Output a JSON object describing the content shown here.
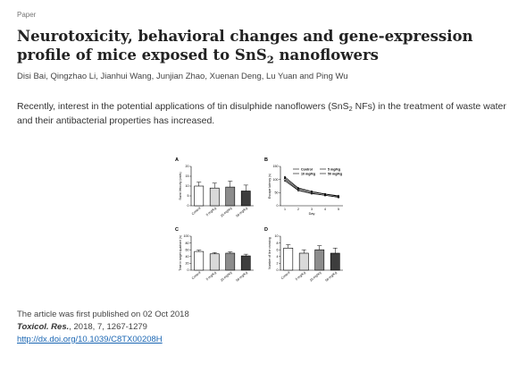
{
  "kind": "Paper",
  "title": {
    "before_sub": "Neurotoxicity, behavioral changes and gene-expression profile of mice exposed to SnS",
    "sub": "2",
    "after_sub": " nanoflowers"
  },
  "authors": "Disi Bai, Qingzhao Li, Jianhui Wang, Junjian Zhao, Xuenan Deng, Lu Yuan and Ping Wu",
  "abstract": {
    "before_sub": "Recently, interest in the potential applications of tin disulphide nanoflowers (SnS",
    "sub": "2",
    "after_sub": " NFs) in the treatment of waste water and their antibacterial properties has increased."
  },
  "figure": {
    "categories": [
      "Control",
      "5 mg/Kg",
      "10 mg/Kg",
      "50 mg/Kg"
    ],
    "bar_colors": [
      "#ffffff",
      "#d9d9d9",
      "#8c8c8c",
      "#3d3d3d"
    ],
    "panels": [
      {
        "label": "A",
        "chart_data": {
          "type": "bar",
          "ylabel": "Swim Velocity (cm/s)",
          "ylim": [
            0,
            20
          ],
          "yticks": [
            "0",
            "5",
            "10",
            "15",
            "20"
          ],
          "categories": [
            "Control",
            "5 mg/Kg",
            "10 mg/Kg",
            "50 mg/Kg"
          ],
          "values": [
            10,
            9,
            9.5,
            7.5
          ],
          "errors": [
            2,
            2.5,
            3,
            3
          ]
        }
      },
      {
        "label": "B",
        "chart_data": {
          "type": "line",
          "xlabel": "Day",
          "ylabel": "Escape latency (s)",
          "ylim": [
            0,
            150
          ],
          "yticks": [
            "0",
            "50",
            "100",
            "150"
          ],
          "x": [
            1,
            2,
            3,
            4,
            5
          ],
          "series": [
            {
              "name": "Control",
              "values": [
                100,
                60,
                48,
                40,
                32
              ]
            },
            {
              "name": "5 mg/Kg",
              "values": [
                105,
                65,
                52,
                44,
                36
              ]
            },
            {
              "name": "10 mg/Kg",
              "values": [
                95,
                58,
                46,
                40,
                33
              ]
            },
            {
              "name": "50 mg/Kg",
              "values": [
                110,
                68,
                55,
                45,
                38
              ]
            }
          ]
        }
      },
      {
        "label": "C",
        "chart_data": {
          "type": "bar",
          "ylabel": "Time in target quadrant (s)",
          "ylim": [
            0,
            100
          ],
          "yticks": [
            "0",
            "20",
            "40",
            "60",
            "80",
            "100"
          ],
          "categories": [
            "Control",
            "5 mg/Kg",
            "10 mg/Kg",
            "50 mg/Kg"
          ],
          "values": [
            55,
            48,
            50,
            42
          ],
          "errors": [
            4,
            4,
            4,
            5
          ]
        }
      },
      {
        "label": "D",
        "chart_data": {
          "type": "bar",
          "ylabel": "Number of line crossing",
          "ylim": [
            0,
            10
          ],
          "yticks": [
            "0",
            "2",
            "4",
            "6",
            "8",
            "10"
          ],
          "categories": [
            "Control",
            "5 mg/Kg",
            "10 mg/Kg",
            "50 mg/Kg"
          ],
          "values": [
            6.5,
            5,
            6,
            5
          ],
          "errors": [
            1,
            1,
            1.2,
            1.5
          ]
        }
      }
    ]
  },
  "meta": {
    "published": "The article was first published on 02 Oct 2018",
    "journal": "Toxicol. Res.",
    "citation": ", 2018, 7, 1267-1279",
    "doi": "http://dx.doi.org/10.1039/C8TX00208H"
  }
}
